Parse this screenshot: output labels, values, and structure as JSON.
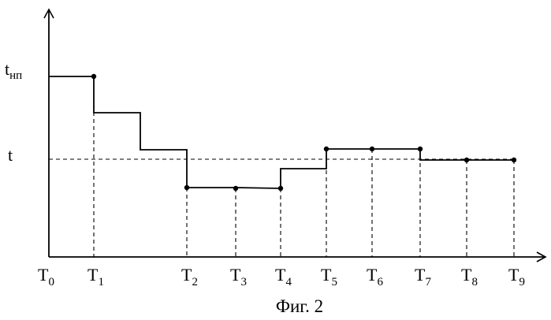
{
  "y_labels": {
    "upper": {
      "main": "t",
      "sub": "нп"
    },
    "level": {
      "main": "t"
    }
  },
  "x_labels": [
    {
      "main": "T",
      "sub": "0"
    },
    {
      "main": "T",
      "sub": "1"
    },
    {
      "main": "T",
      "sub": "2"
    },
    {
      "main": "T",
      "sub": "3"
    },
    {
      "main": "T",
      "sub": "4"
    },
    {
      "main": "T",
      "sub": "5"
    },
    {
      "main": "T",
      "sub": "6"
    },
    {
      "main": "T",
      "sub": "7"
    },
    {
      "main": "T",
      "sub": "8"
    },
    {
      "main": "T",
      "sub": "9"
    }
  ],
  "caption": "Фиг. 2",
  "colors": {
    "ink": "#000000",
    "background": "#ffffff"
  }
}
